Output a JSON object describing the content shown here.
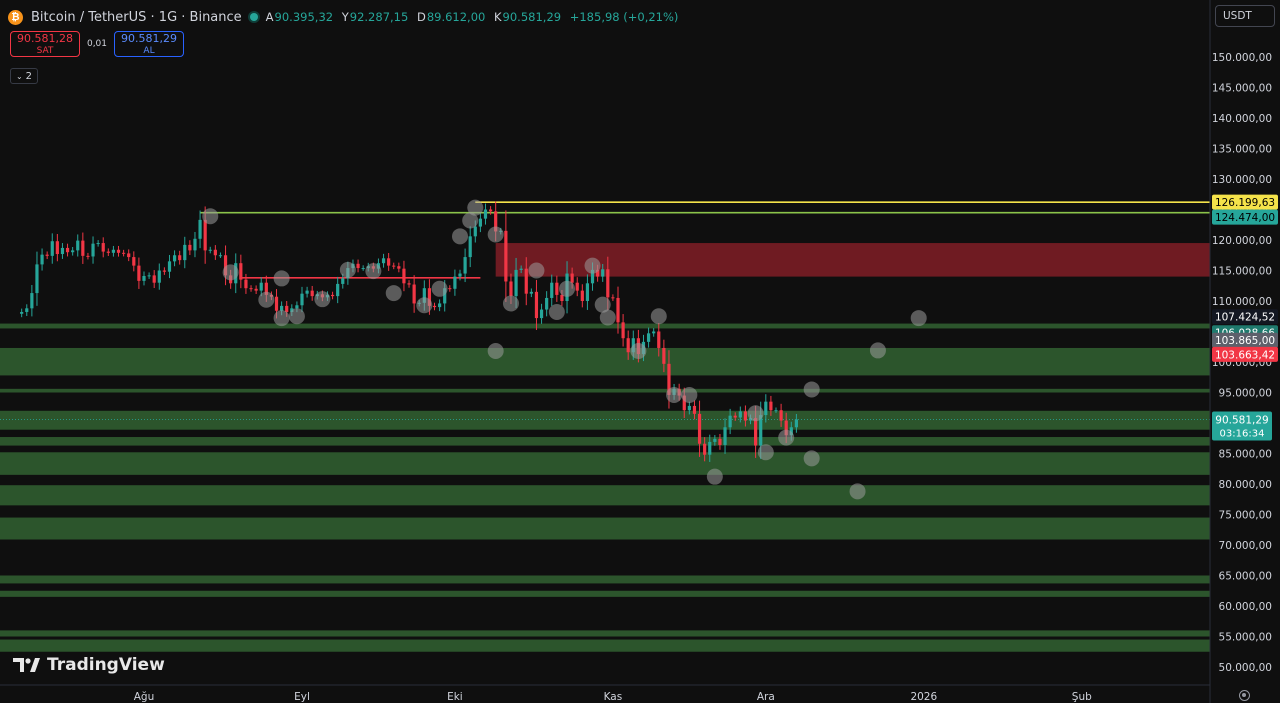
{
  "header": {
    "title": "Bitcoin / TetherUS · 1G · Binance",
    "ohlc": [
      {
        "key": "A",
        "value": "90.395,32"
      },
      {
        "key": "Y",
        "value": "92.287,15"
      },
      {
        "key": "D",
        "value": "89.612,00"
      },
      {
        "key": "K",
        "value": "90.581,29"
      }
    ],
    "change": "+185,98 (+0,21%)"
  },
  "trade": {
    "sell_price": "90.581,28",
    "sell_label": "SAT",
    "spread": "0,01",
    "buy_price": "90.581,29",
    "buy_label": "AL"
  },
  "indicators_count": "2",
  "currency": "USDT",
  "logo_text": "TradingView",
  "colors": {
    "background": "#0f0f0f",
    "up": "#26a69a",
    "down": "#f23645",
    "zone_green": "#2e5a2e",
    "zone_red": "#8b1f28",
    "yellow_line": "#f5e34a",
    "green_line": "#8bc34a"
  },
  "chart_data": {
    "type": "candlestick",
    "title": "",
    "xlabel": "",
    "ylabel": "",
    "ylim": [
      48500,
      155500
    ],
    "y_ticks": [
      "150.000,00",
      "145.000,00",
      "140.000,00",
      "135.000,00",
      "130.000,00",
      "125.000,00",
      "120.000,00",
      "115.000,00",
      "110.000,00",
      "105.000,00",
      "100.000,00",
      "95.000,00",
      "90.000,00",
      "85.000,00",
      "80.000,00",
      "75.000,00",
      "70.000,00",
      "65.000,00",
      "60.000,00",
      "55.000,00",
      "50.000,00"
    ],
    "y_tick_values": [
      150000,
      145000,
      140000,
      135000,
      130000,
      125000,
      120000,
      115000,
      110000,
      105000,
      100000,
      95000,
      90000,
      85000,
      80000,
      75000,
      70000,
      65000,
      60000,
      55000,
      50000
    ],
    "x_ticks": [
      {
        "label": "Ağu",
        "date": "2025-08-01"
      },
      {
        "label": "Eyl",
        "date": "2025-09-01"
      },
      {
        "label": "Eki",
        "date": "2025-10-01"
      },
      {
        "label": "Kas",
        "date": "2025-11-01"
      },
      {
        "label": "Ara",
        "date": "2025-12-01"
      },
      {
        "label": "2026",
        "date": "2026-01-01"
      },
      {
        "label": "Şub",
        "date": "2026-02-01"
      }
    ],
    "x_range": [
      "2025-07-08",
      "2026-02-23"
    ],
    "first_candle_date": "2025-07-08",
    "closes": [
      108200,
      108800,
      111300,
      116000,
      117600,
      117400,
      119800,
      117700,
      118700,
      118000,
      118300,
      119900,
      117400,
      117300,
      119400,
      119500,
      118100,
      117900,
      118400,
      117900,
      117800,
      117200,
      115800,
      113300,
      114100,
      114200,
      113000,
      115000,
      114800,
      116500,
      117500,
      116700,
      119200,
      118300,
      120200,
      123300,
      118300,
      118400,
      117500,
      117500,
      114200,
      112900,
      116200,
      113500,
      112100,
      112000,
      111700,
      113000,
      111000,
      110700,
      108400,
      109200,
      108200,
      108800,
      109300,
      111200,
      111700,
      110800,
      111100,
      110600,
      111000,
      110800,
      112800,
      113700,
      115400,
      116100,
      115400,
      115400,
      115700,
      115300,
      116200,
      117000,
      115800,
      115700,
      115300,
      112900,
      112700,
      109600,
      109700,
      112100,
      109200,
      109000,
      109600,
      112100,
      112000,
      114000,
      114500,
      117200,
      120600,
      122200,
      123500,
      125000,
      124700,
      121400,
      121500,
      113200,
      110800,
      115100,
      115300,
      111200,
      111500,
      107200,
      108600,
      110500,
      113000,
      111000,
      110000,
      114500,
      113000,
      111700,
      110000,
      112900,
      115100,
      114000,
      115200,
      110600,
      110500,
      106500,
      103900,
      101600,
      103900,
      101300,
      103300,
      104700,
      105000,
      102300,
      99700,
      94600,
      95600,
      94500,
      92100,
      92800,
      91500,
      86600,
      84800,
      86900,
      87400,
      86400,
      89300,
      91200,
      90900,
      91900,
      90400,
      90800,
      86300,
      91300,
      93500,
      92100,
      92100,
      90400,
      88000,
      89300,
      90581.29
    ],
    "price_labels": [
      {
        "value": 126199.63,
        "text": "126.199,63",
        "bg": "#f5e34a",
        "fg": "#000000"
      },
      {
        "value": 124474.0,
        "text": "124.474,00",
        "bg": "#26a69a",
        "fg": "#000000"
      },
      {
        "value": 107424.52,
        "text": "107.424,52",
        "bg": "#131722",
        "fg": "#ffffff"
      },
      {
        "value": 106028.66,
        "text": "106.028,66",
        "bg": "#1f7a6e",
        "fg": "#ffffff"
      },
      {
        "value": 103865.0,
        "text": "103.865,00",
        "bg": "#5d606b",
        "fg": "#ffffff"
      },
      {
        "value": 103663.42,
        "text": "103.663,42",
        "bg": "#f23645",
        "fg": "#ffffff"
      }
    ],
    "current_price": {
      "value": 90581.29,
      "text": "90.581,29",
      "countdown": "03:16:34"
    },
    "horizontal_lines": [
      {
        "value": 126199.63,
        "color": "#f5e34a",
        "from": "2025-10-05"
      },
      {
        "value": 124474.0,
        "color": "#8bc34a",
        "from": "2025-08-12"
      },
      {
        "value": 113800,
        "color": "#f23645",
        "from": "2025-08-20",
        "to": "2025-10-06"
      }
    ],
    "zones": [
      {
        "from": 114000,
        "to": 119500,
        "color": "red",
        "start": "2025-10-09"
      },
      {
        "from": 105500,
        "to": 106300,
        "color": "green"
      },
      {
        "from": 97800,
        "to": 102300,
        "color": "green"
      },
      {
        "from": 95000,
        "to": 95600,
        "color": "green"
      },
      {
        "from": 88900,
        "to": 92000,
        "color": "green"
      },
      {
        "from": 86300,
        "to": 87700,
        "color": "green"
      },
      {
        "from": 81500,
        "to": 85200,
        "color": "green"
      },
      {
        "from": 76500,
        "to": 79800,
        "color": "green"
      },
      {
        "from": 70900,
        "to": 74500,
        "color": "green"
      },
      {
        "from": 63700,
        "to": 65000,
        "color": "green"
      },
      {
        "from": 61500,
        "to": 62500,
        "color": "green"
      },
      {
        "from": 55000,
        "to": 56000,
        "color": "green"
      },
      {
        "from": 52500,
        "to": 54500,
        "color": "green"
      }
    ],
    "markers": [
      {
        "date": "2025-08-14",
        "value": 123900
      },
      {
        "date": "2025-08-18",
        "value": 114700
      },
      {
        "date": "2025-08-25",
        "value": 110200
      },
      {
        "date": "2025-08-28",
        "value": 113700
      },
      {
        "date": "2025-08-28",
        "value": 107200
      },
      {
        "date": "2025-08-31",
        "value": 107500
      },
      {
        "date": "2025-09-05",
        "value": 110300
      },
      {
        "date": "2025-09-10",
        "value": 115100
      },
      {
        "date": "2025-09-15",
        "value": 114900
      },
      {
        "date": "2025-09-19",
        "value": 111300
      },
      {
        "date": "2025-09-25",
        "value": 109300
      },
      {
        "date": "2025-09-28",
        "value": 112000
      },
      {
        "date": "2025-10-02",
        "value": 120600
      },
      {
        "date": "2025-10-04",
        "value": 123200
      },
      {
        "date": "2025-10-05",
        "value": 125300
      },
      {
        "date": "2025-10-09",
        "value": 120900
      },
      {
        "date": "2025-10-09",
        "value": 101800
      },
      {
        "date": "2025-10-12",
        "value": 109600
      },
      {
        "date": "2025-10-17",
        "value": 115000
      },
      {
        "date": "2025-10-21",
        "value": 108200
      },
      {
        "date": "2025-10-23",
        "value": 112000
      },
      {
        "date": "2025-10-28",
        "value": 115800
      },
      {
        "date": "2025-10-30",
        "value": 109400
      },
      {
        "date": "2025-10-31",
        "value": 107300
      },
      {
        "date": "2025-11-06",
        "value": 101800
      },
      {
        "date": "2025-11-10",
        "value": 107500
      },
      {
        "date": "2025-11-13",
        "value": 94600
      },
      {
        "date": "2025-11-16",
        "value": 94600
      },
      {
        "date": "2025-11-21",
        "value": 81200
      },
      {
        "date": "2025-11-29",
        "value": 91600
      },
      {
        "date": "2025-12-01",
        "value": 85200
      },
      {
        "date": "2025-12-05",
        "value": 87600
      },
      {
        "date": "2025-12-10",
        "value": 95500
      },
      {
        "date": "2025-12-10",
        "value": 84200
      },
      {
        "date": "2025-12-19",
        "value": 78800
      },
      {
        "date": "2025-12-23",
        "value": 101900
      },
      {
        "date": "2025-12-31",
        "value": 107200
      }
    ]
  }
}
